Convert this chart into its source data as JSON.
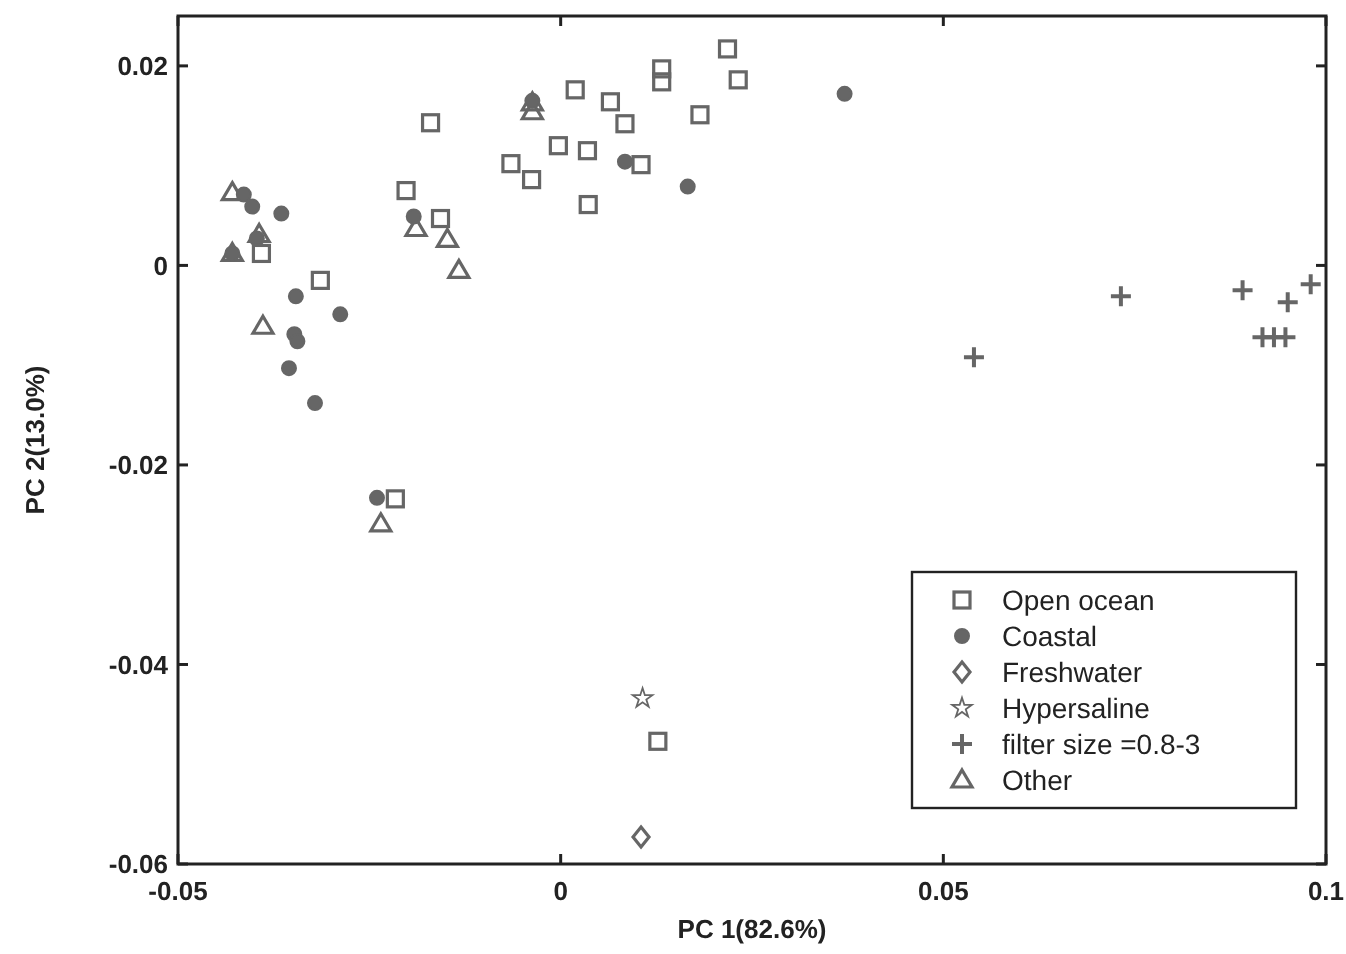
{
  "chart_data": {
    "type": "scatter",
    "xlabel": "PC 1(82.6%)",
    "ylabel": "PC 2(13.0%)",
    "xlim": [
      -0.05,
      0.1
    ],
    "ylim": [
      -0.06,
      0.025
    ],
    "xticks": [
      -0.05,
      0,
      0.05,
      0.1
    ],
    "yticks": [
      -0.06,
      -0.04,
      -0.02,
      0,
      0.02
    ],
    "grid": false,
    "legend": "bottom right",
    "series": [
      {
        "name": "Open ocean",
        "color": "#666666",
        "marker": "square",
        "x": [
          -0.0391,
          -0.0314,
          -0.017,
          -0.0202,
          -0.0157,
          -0.0065,
          -0.0038,
          0.0218,
          0.0232,
          0.0132,
          0.0132,
          0.0019,
          0.0065,
          0.0084,
          0.0182,
          -0.0003,
          0.0035,
          0.0105,
          0.0036,
          -0.0216,
          0.0127
        ],
        "values": [
          0.0012,
          -0.0015,
          0.0143,
          0.0075,
          0.0047,
          0.0102,
          0.0086,
          0.0217,
          0.0186,
          0.0197,
          0.0184,
          0.0176,
          0.0164,
          0.0142,
          0.0151,
          0.012,
          0.0115,
          0.0101,
          0.0061,
          -0.0234,
          -0.0477
        ]
      },
      {
        "name": "Coastal",
        "color": "#666666",
        "marker": "circle",
        "x": [
          -0.0414,
          -0.0403,
          -0.0365,
          -0.0397,
          -0.0346,
          -0.0348,
          -0.0344,
          -0.0355,
          -0.0321,
          -0.0288,
          -0.0192,
          -0.0429,
          -0.0037,
          -0.024,
          0.0084,
          0.0166,
          0.0371
        ],
        "values": [
          0.0071,
          0.0059,
          0.0052,
          0.0027,
          -0.0031,
          -0.0069,
          -0.0076,
          -0.0103,
          -0.0138,
          -0.0049,
          0.0049,
          0.0012,
          0.0165,
          -0.0233,
          0.0104,
          0.0079,
          0.0172
        ]
      },
      {
        "name": "Freshwater",
        "color": "#666666",
        "marker": "diamond",
        "x": [
          0.0105
        ],
        "values": [
          -0.0573
        ]
      },
      {
        "name": "Hypersaline",
        "color": "#666666",
        "marker": "star",
        "x": [
          0.0107
        ],
        "values": [
          -0.0434
        ]
      },
      {
        "name": "filter size =0.8-3",
        "color": "#666666",
        "marker": "cross",
        "x": [
          0.054,
          0.0732,
          0.0891,
          0.095,
          0.098,
          0.0917,
          0.0932,
          0.0947
        ],
        "values": [
          -0.0092,
          -0.0031,
          -0.0025,
          -0.0037,
          -0.0019,
          -0.0072,
          -0.0072,
          -0.0072
        ]
      },
      {
        "name": "Other",
        "color": "#666666",
        "marker": "triangle",
        "x": [
          -0.0429,
          -0.0429,
          -0.0394,
          -0.0389,
          -0.0189,
          -0.0148,
          -0.0133,
          -0.0037,
          -0.0037,
          -0.0235
        ],
        "values": [
          0.0073,
          0.0012,
          0.0031,
          -0.0061,
          0.0037,
          0.0026,
          -0.0005,
          0.0163,
          0.0154,
          -0.0259
        ]
      }
    ]
  }
}
